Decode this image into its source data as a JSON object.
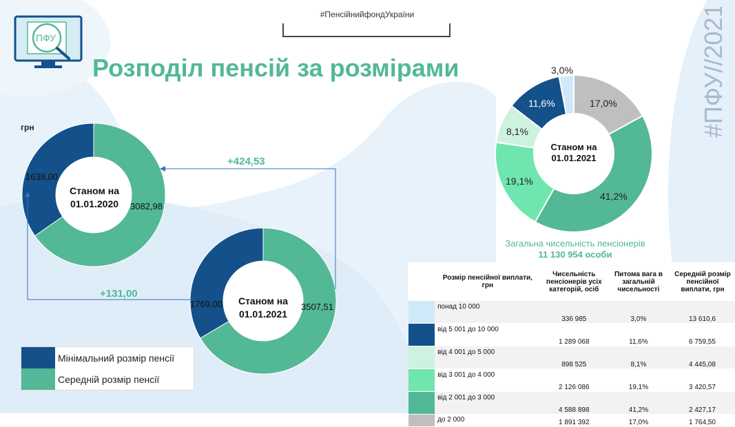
{
  "header": {
    "hashtag": "#ПенсійнийфондУкраїни",
    "vertical_hashtag": "#ПФУ//2021",
    "logo_text": "ПФУ",
    "title": "Розподіл пенсій за розмірами"
  },
  "colors": {
    "minimum": "#14508a",
    "average": "#52b896",
    "title": "#52b896",
    "over_10000": "#cfe9f8",
    "from_5001_to_10000": "#14508a",
    "from_4001_to_5000": "#cdf2e0",
    "from_3001_to_4000": "#6ee6ad",
    "from_2001_to_3000": "#52b896",
    "up_to_2000": "#bfbfbf"
  },
  "chart_data": [
    {
      "type": "pie",
      "style": "donut",
      "unit": "грн",
      "center_label": "Станом на 01.01.2020",
      "categories": [
        "Мінімальний  розмір пенсії",
        "Середній розмір пенсії"
      ],
      "values": [
        1638.0,
        3082.98
      ],
      "value_labels": [
        "1638,00",
        "3082,98"
      ]
    },
    {
      "type": "pie",
      "style": "donut",
      "center_label": "Станом на 01.01.2021",
      "categories": [
        "Мінімальний  розмір пенсії",
        "Середній розмір пенсії"
      ],
      "values": [
        1769.0,
        3507.51
      ],
      "value_labels": [
        "1769,00",
        "3507,51"
      ]
    },
    {
      "type": "pie",
      "style": "donut",
      "center_label": "Станом на 01.01.2021",
      "categories": [
        "понад 10 000",
        "від 5 001 до 10 000",
        "від 4 001 до 5 000",
        "від 3 001 до 4 000",
        "від 2 001 до 3 000",
        "до 2 000"
      ],
      "values": [
        3.0,
        11.6,
        8.1,
        19.1,
        41.2,
        17.0
      ],
      "value_labels": [
        "3,0%",
        "11,6%",
        "8,1%",
        "19,1%",
        "41,2%",
        "17,0%"
      ]
    }
  ],
  "differences": {
    "average": "+424,53",
    "minimum": "+131,00"
  },
  "legend": {
    "minimum": "Мінімальний  розмір пенсії",
    "average": "Середній розмір пенсії"
  },
  "totals": {
    "label": "Загальна чисельність пенсіонерів",
    "value": "11 130  954 особи"
  },
  "table": {
    "headers": [
      "Розмір пенсійної виплати, грн",
      "Чисельність пенсіонерів усіх категорій, осіб",
      "Питома вага в загальній чисельності",
      "Середній розмір пенсійної виплати, грн"
    ],
    "rows": [
      {
        "name": "понад 10 000",
        "count": "336 985",
        "share": "3,0%",
        "avg": "13 610,6"
      },
      {
        "name": "від 5 001 до 10 000",
        "count": "1 289 068",
        "share": "11,6%",
        "avg": "6 759,55"
      },
      {
        "name": "від 4 001 до 5 000",
        "count": "898 525",
        "share": "8,1%",
        "avg": "4 445,08"
      },
      {
        "name": "від 3 001 до 4 000",
        "count": "2 126 086",
        "share": "19,1%",
        "avg": "3 420,57"
      },
      {
        "name": "від 2 001 до 3 000",
        "count": "4 588 898",
        "share": "41,2%",
        "avg": "2 427,17"
      },
      {
        "name": "до 2 000",
        "count": "1 891 392",
        "share": "17,0%",
        "avg": "1 764,50"
      }
    ]
  }
}
